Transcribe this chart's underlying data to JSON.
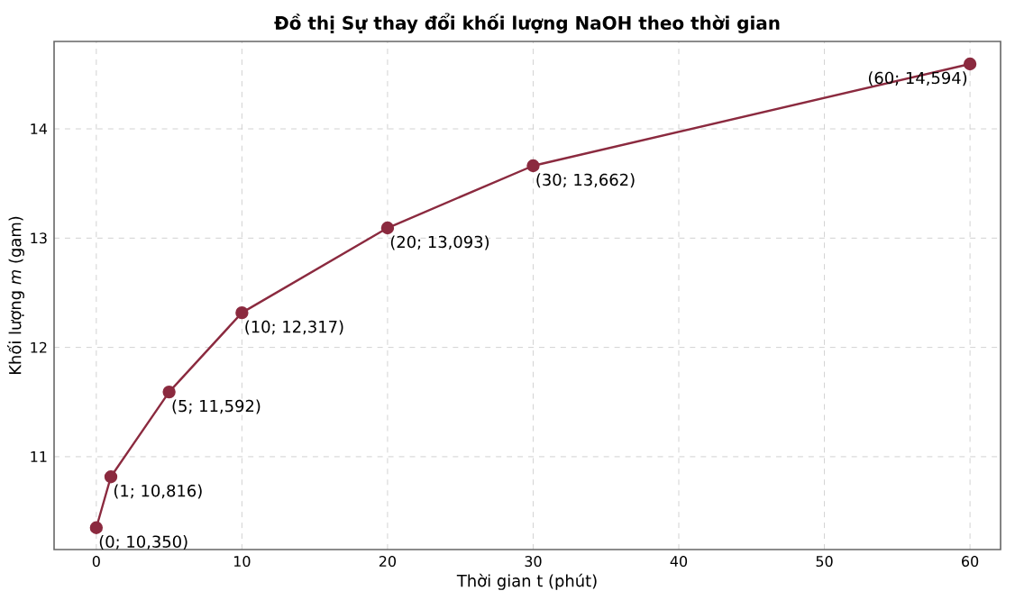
{
  "chart_data": {
    "type": "line",
    "title": "Đồ thị Sự thay đổi khối lượng NaOH theo thời gian",
    "xlabel": "Thời gian t (phút)",
    "ylabel": "Khối lượng *m* (gam)",
    "x": [
      0,
      1,
      5,
      10,
      20,
      30,
      60
    ],
    "series": [
      {
        "color": "#8b2a3f",
        "values": [
          10.35,
          10.816,
          11.592,
          12.317,
          13.093,
          13.662,
          14.594
        ]
      }
    ],
    "xlim": [
      -2.9,
      62.1
    ],
    "ylim": [
      10.15,
      14.8
    ],
    "xticks": [
      0,
      10,
      20,
      30,
      40,
      50,
      60
    ],
    "yticks": [
      11,
      12,
      13,
      14
    ],
    "grid": true,
    "marker": "circle",
    "line_style": "solid",
    "annotations": [
      {
        "text": "(0; 10,350)",
        "x": 0,
        "y": 10.35
      },
      {
        "text": "(1; 10,816)",
        "x": 1,
        "y": 10.816
      },
      {
        "text": "(5; 11,592)",
        "x": 5,
        "y": 11.592
      },
      {
        "text": "(10; 12,317)",
        "x": 10,
        "y": 12.317
      },
      {
        "text": "(20; 13,093)",
        "x": 20,
        "y": 13.093
      },
      {
        "text": "(30; 13,662)",
        "x": 30,
        "y": 13.662
      },
      {
        "text": "(60; 14,594)",
        "x": 60,
        "y": 14.594
      }
    ]
  }
}
